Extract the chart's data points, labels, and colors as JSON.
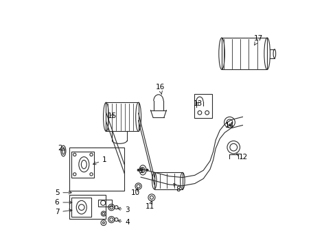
{
  "background_color": "#ffffff",
  "line_color": "#2a2a2a",
  "label_color": "#000000",
  "fig_width": 4.89,
  "fig_height": 3.6,
  "dpi": 100,
  "label_positions": {
    "1": [
      0.242,
      0.352,
      0.185,
      0.33
    ],
    "2": [
      0.06,
      0.4,
      0.082,
      0.39
    ],
    "3": [
      0.336,
      0.148,
      0.285,
      0.155
    ],
    "4": [
      0.336,
      0.098,
      0.285,
      0.105
    ],
    "5": [
      0.048,
      0.218,
      0.118,
      0.218
    ],
    "6": [
      0.048,
      0.178,
      0.12,
      0.178
    ],
    "7": [
      0.048,
      0.138,
      0.12,
      0.148
    ],
    "8": [
      0.542,
      0.232,
      0.522,
      0.258
    ],
    "9": [
      0.392,
      0.308,
      0.4,
      0.322
    ],
    "10": [
      0.368,
      0.216,
      0.378,
      0.238
    ],
    "11": [
      0.428,
      0.162,
      0.434,
      0.186
    ],
    "12": [
      0.808,
      0.362,
      0.778,
      0.378
    ],
    "13": [
      0.622,
      0.582,
      0.632,
      0.595
    ],
    "14": [
      0.752,
      0.492,
      0.754,
      0.508
    ],
    "15": [
      0.272,
      0.53,
      0.288,
      0.542
    ],
    "16": [
      0.468,
      0.648,
      0.475,
      0.618
    ],
    "17": [
      0.87,
      0.848,
      0.852,
      0.818
    ]
  }
}
